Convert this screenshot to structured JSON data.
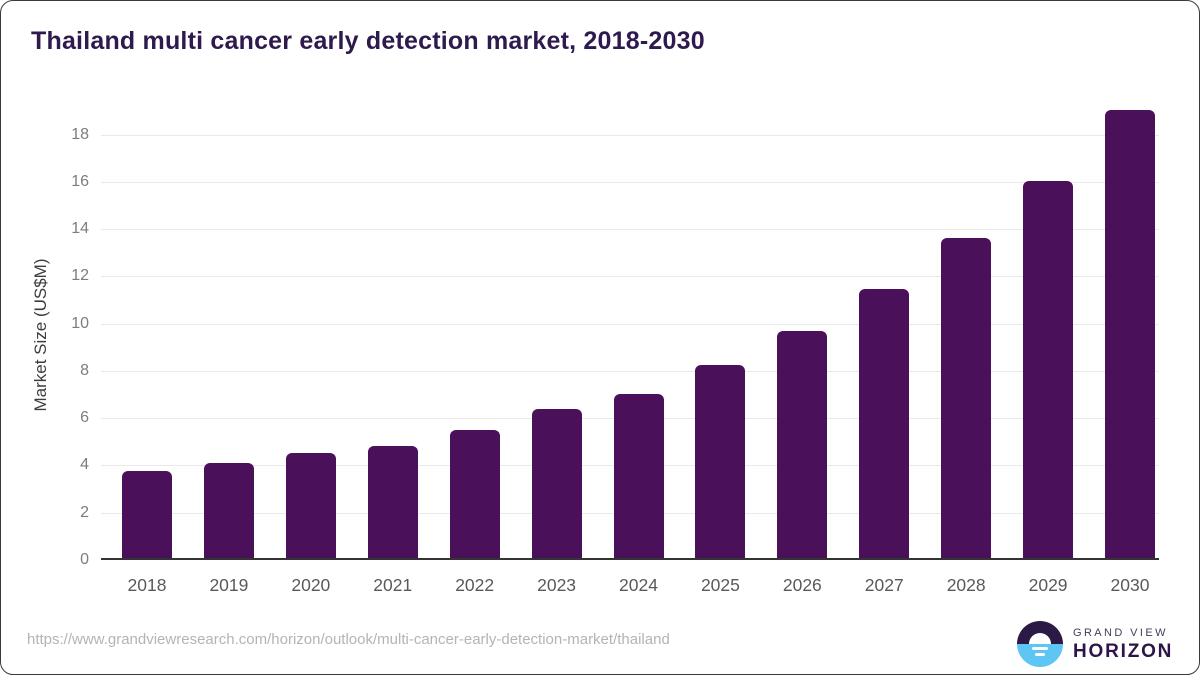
{
  "card": {
    "background": "#ffffff",
    "border_color": "#3a3a3a"
  },
  "chart_data": {
    "type": "bar",
    "title": "Thailand multi cancer early detection market, 2018-2030",
    "categories": [
      "2018",
      "2019",
      "2020",
      "2021",
      "2022",
      "2023",
      "2024",
      "2025",
      "2026",
      "2027",
      "2028",
      "2029",
      "2030"
    ],
    "values": [
      3.7,
      4.0,
      4.45,
      4.75,
      5.4,
      6.3,
      6.95,
      8.15,
      9.6,
      11.4,
      13.55,
      15.95,
      18.95
    ],
    "xlabel": "",
    "ylabel": "Market Size (US$M)",
    "ylim": [
      0,
      19
    ],
    "yticks": [
      0,
      2,
      4,
      6,
      8,
      10,
      12,
      14,
      16,
      18
    ],
    "grid": true,
    "legend_position": "none",
    "bar_color": "#4a1059",
    "gridline_color": "#e9e9e9",
    "axis_line_color": "#343434",
    "tick_label_color": "#7d7d7d",
    "x_label_color": "#595959",
    "title_color": "#2e1a4d"
  },
  "footer": {
    "source_url": "https://www.grandviewresearch.com/horizon/outlook/multi-cancer-early-detection-market/thailand",
    "logo": {
      "line1": "GRAND VIEW",
      "line2": "HORIZON",
      "icon": "horizon-sun-icon",
      "icon_top_color": "#2a1a45",
      "icon_bottom_color": "#5ec6f2"
    }
  }
}
